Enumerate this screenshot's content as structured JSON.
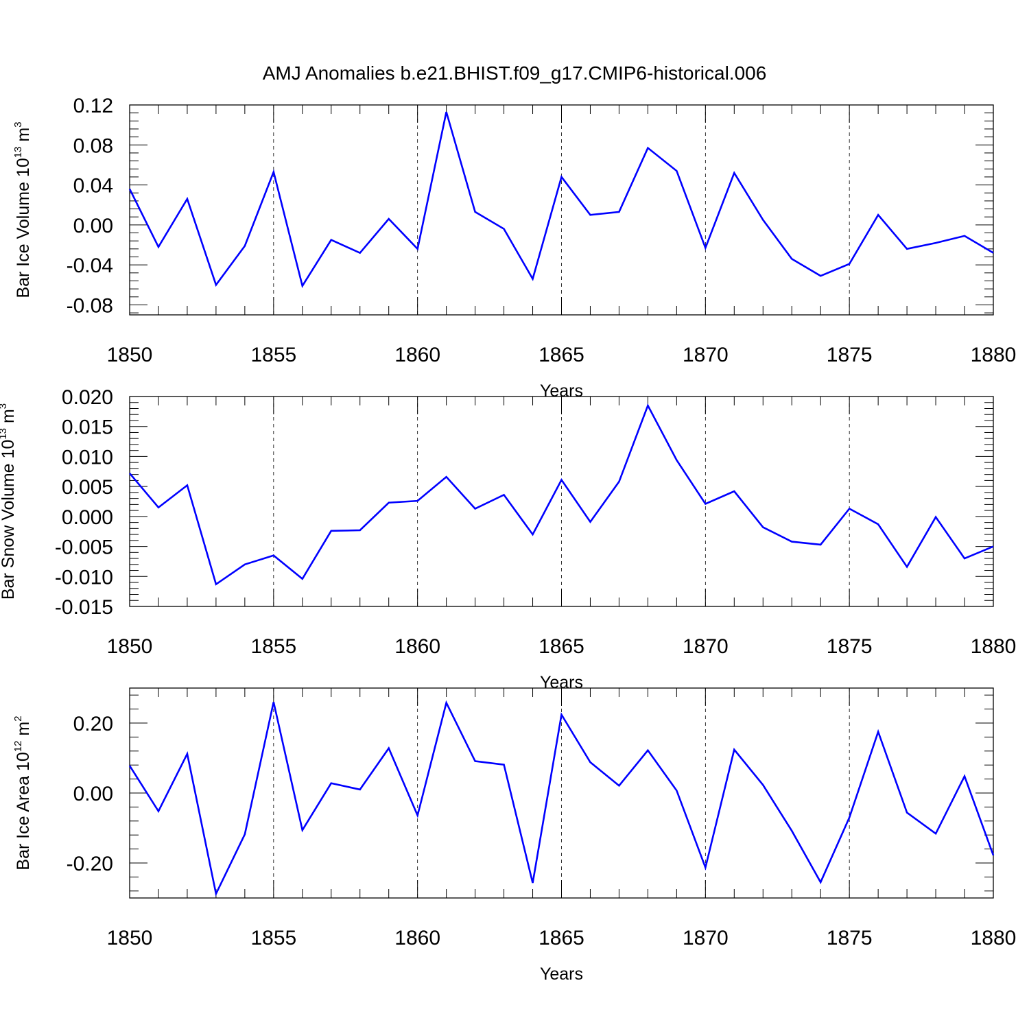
{
  "chart_data": [
    {
      "type": "line",
      "title": "AMJ Anomalies b.e21.BHIST.f09_g17.CMIP6-historical.006",
      "ylabel_prefix": "Bar Ice Volume 10",
      "ylabel_exp": "13",
      "ylabel_unit": " m",
      "ylabel_unit_exp": "3",
      "xlabel": "Years",
      "xlim": [
        1850,
        1880
      ],
      "ylim": [
        -0.09,
        0.12
      ],
      "yticks": [
        "0.12",
        "0.08",
        "0.04",
        "0.00",
        "-0.04",
        "-0.08"
      ],
      "ytick_values": [
        0.12,
        0.08,
        0.04,
        0.0,
        -0.04,
        -0.08
      ],
      "xticks": [
        "1850",
        "1855",
        "1860",
        "1865",
        "1870",
        "1875",
        "1880"
      ],
      "series": [
        {
          "name": "Bar Ice Volume",
          "color": "#0000ff",
          "values": [
            0.036,
            -0.022,
            0.026,
            -0.06,
            -0.021,
            0.053,
            -0.061,
            -0.015,
            -0.028,
            0.006,
            -0.024,
            0.113,
            0.013,
            -0.004,
            -0.054,
            0.048,
            0.01,
            0.013,
            0.077,
            0.054,
            -0.023,
            0.052,
            0.005,
            -0.034,
            -0.051,
            -0.039,
            0.01,
            -0.024,
            -0.018,
            -0.011,
            -0.028
          ]
        }
      ]
    },
    {
      "type": "line",
      "ylabel_prefix": "Bar Snow Volume 10",
      "ylabel_exp": "13",
      "ylabel_unit": " m",
      "ylabel_unit_exp": "3",
      "xlabel": "Years",
      "xlim": [
        1850,
        1880
      ],
      "ylim": [
        -0.015,
        0.02
      ],
      "yticks": [
        "0.020",
        "0.015",
        "0.010",
        "0.005",
        "0.000",
        "-0.005",
        "-0.010",
        "-0.015"
      ],
      "ytick_values": [
        0.02,
        0.015,
        0.01,
        0.005,
        0.0,
        -0.005,
        -0.01,
        -0.015
      ],
      "xticks": [
        "1850",
        "1855",
        "1860",
        "1865",
        "1870",
        "1875",
        "1880"
      ],
      "series": [
        {
          "name": "Bar Snow Volume",
          "color": "#0000ff",
          "values": [
            0.0072,
            0.0015,
            0.0052,
            -0.0113,
            -0.008,
            -0.0065,
            -0.0104,
            -0.0024,
            -0.0023,
            0.0023,
            0.0026,
            0.0066,
            0.0013,
            0.0036,
            -0.003,
            0.0061,
            -0.0009,
            0.0058,
            0.0185,
            0.0094,
            0.0021,
            0.0042,
            -0.0018,
            -0.0042,
            -0.0047,
            0.0013,
            -0.0013,
            -0.0084,
            -0.0001,
            -0.007,
            -0.005
          ]
        }
      ]
    },
    {
      "type": "line",
      "ylabel_prefix": "Bar Ice Area 10",
      "ylabel_exp": "12",
      "ylabel_unit": " m",
      "ylabel_unit_exp": "2",
      "xlabel": "Years",
      "xlim": [
        1850,
        1880
      ],
      "ylim": [
        -0.3,
        0.3
      ],
      "yticks": [
        "0.20",
        "0.00",
        "-0.20"
      ],
      "ytick_values": [
        0.2,
        0.0,
        -0.2
      ],
      "xticks": [
        "1850",
        "1855",
        "1860",
        "1865",
        "1870",
        "1875",
        "1880"
      ],
      "series": [
        {
          "name": "Bar Ice Area",
          "color": "#0000ff",
          "values": [
            0.078,
            -0.052,
            0.112,
            -0.288,
            -0.118,
            0.26,
            -0.106,
            0.028,
            0.01,
            0.128,
            -0.064,
            0.258,
            0.091,
            0.081,
            -0.257,
            0.224,
            0.088,
            0.021,
            0.122,
            0.007,
            -0.213,
            0.124,
            0.023,
            -0.108,
            -0.255,
            -0.07,
            0.175,
            -0.056,
            -0.116,
            0.048,
            -0.178
          ]
        }
      ]
    }
  ]
}
